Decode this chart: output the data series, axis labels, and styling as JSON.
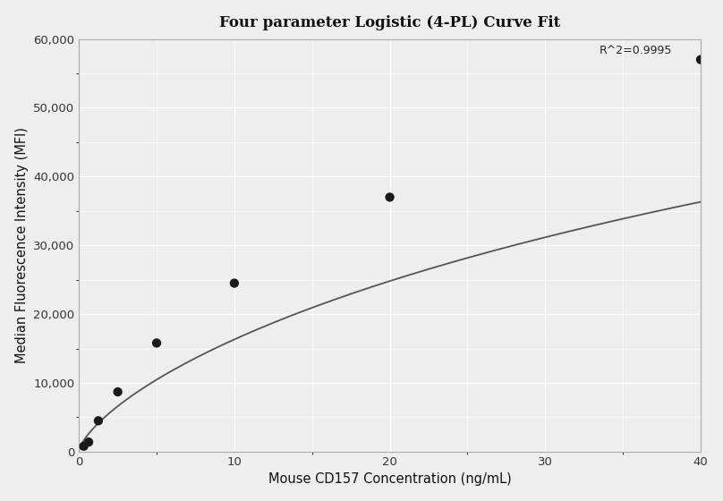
{
  "title": "Four parameter Logistic (4-PL) Curve Fit",
  "xlabel": "Mouse CD157 Concentration (ng/mL)",
  "ylabel": "Median Fluorescence Intensity (MFI)",
  "scatter_x": [
    0.313,
    0.625,
    1.25,
    2.5,
    5.0,
    10.0,
    20.0,
    40.0
  ],
  "scatter_y": [
    800,
    1400,
    4500,
    8700,
    15800,
    24500,
    37000,
    57000
  ],
  "r_squared": "R^2=0.9995",
  "xlim": [
    0,
    40
  ],
  "ylim": [
    0,
    60000
  ],
  "yticks": [
    0,
    10000,
    20000,
    30000,
    40000,
    50000,
    60000
  ],
  "xticks": [
    0,
    10,
    20,
    30,
    40
  ],
  "bg_color": "#eeeeee",
  "grid_color": "#ffffff",
  "dot_color": "#1a1a1a",
  "curve_color": "#555555",
  "4pl_A": 150.0,
  "4pl_B": 0.72,
  "4pl_C": 150.0,
  "4pl_D": 130000.0
}
